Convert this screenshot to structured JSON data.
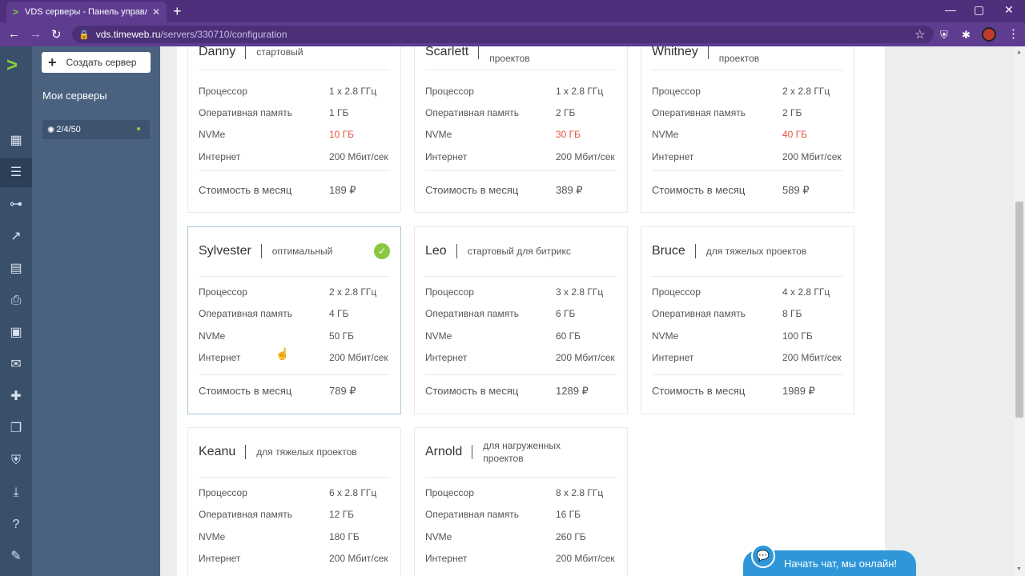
{
  "browser": {
    "tab_title": "VDS серверы - Панель управле",
    "tab_close": "✕",
    "newtab": "+",
    "window_controls": [
      "—",
      "▢",
      "✕"
    ],
    "url_host": "vds.timeweb.ru",
    "url_path": "/servers/330710/configuration",
    "nav": {
      "back": "←",
      "forward": "→",
      "reload": "↻"
    },
    "icons": {
      "lock": "🔒",
      "star": "☆",
      "shield": "⛨",
      "puzzle": "✱",
      "menu": "⋮"
    }
  },
  "rail": {
    "logo": ">",
    "icons": [
      "▦",
      "☰",
      "⊶",
      "↗",
      "▤",
      "⎙",
      "▣",
      "✉",
      "✚",
      "❐",
      "⛨",
      "⤓",
      "?",
      "✎"
    ]
  },
  "sidebar": {
    "create_plus": "+",
    "create_label": "Создать сервер",
    "title": "Мои серверы",
    "server_icon": "✺",
    "server_label": "2/4/50"
  },
  "labels": {
    "cpu": "Процессор",
    "ram": "Оперативная память",
    "disk": "NVMe",
    "net": "Интернет",
    "price": "Стоимость в месяц",
    "check": "✓"
  },
  "plans": [
    {
      "name": "Danny",
      "tag": "стартовый",
      "cpu": "1 x 2.8 ГГц",
      "ram": "1 ГБ",
      "disk": "10 ГБ",
      "net": "200 Мбит/сек",
      "price": "189 ₽"
    },
    {
      "name": "Scarlett",
      "tag": "проектов",
      "cpu": "1 x 2.8 ГГц",
      "ram": "2 ГБ",
      "disk": "30 ГБ",
      "net": "200 Мбит/сек",
      "price": "389 ₽"
    },
    {
      "name": "Whitney",
      "tag": "проектов",
      "cpu": "2 x 2.8 ГГц",
      "ram": "2 ГБ",
      "disk": "40 ГБ",
      "net": "200 Мбит/сек",
      "price": "589 ₽"
    },
    {
      "name": "Sylvester",
      "tag": "оптимальный",
      "cpu": "2 x 2.8 ГГц",
      "ram": "4 ГБ",
      "disk": "50 ГБ",
      "net": "200 Мбит/сек",
      "price": "789 ₽"
    },
    {
      "name": "Leo",
      "tag": "стартовый для битрикс",
      "cpu": "3 x 2.8 ГГц",
      "ram": "6 ГБ",
      "disk": "60 ГБ",
      "net": "200 Мбит/сек",
      "price": "1289 ₽"
    },
    {
      "name": "Bruce",
      "tag": "для тяжелых проектов",
      "cpu": "4 x 2.8 ГГц",
      "ram": "8 ГБ",
      "disk": "100 ГБ",
      "net": "200 Мбит/сек",
      "price": "1989 ₽"
    },
    {
      "name": "Keanu",
      "tag": "для тяжелых проектов",
      "cpu": "6 x 2.8 ГГц",
      "ram": "12 ГБ",
      "disk": "180 ГБ",
      "net": "200 Мбит/сек"
    },
    {
      "name": "Arnold",
      "tag": "для нагруженных проектов",
      "cpu": "8 x 2.8 ГГц",
      "ram": "16 ГБ",
      "disk": "260 ГБ",
      "net": "200 Мбит/сек"
    }
  ],
  "chat": {
    "icon": "💬",
    "label": "Начать чат, мы онлайн!"
  },
  "colors": {
    "accent_green": "#8ac840",
    "disk_highlight": "#e8503f",
    "chat_blue": "#2e97d8",
    "browser_purple": "#5e3d91",
    "sidebar": "#4a6280"
  }
}
